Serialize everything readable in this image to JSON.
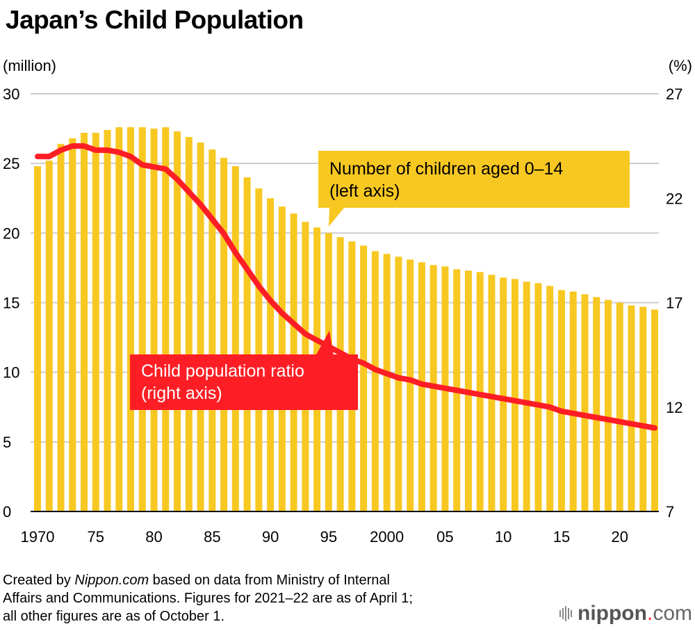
{
  "title": "Japan’s Child Population",
  "left_unit": "(million)",
  "right_unit": "(%)",
  "callouts": {
    "bars": {
      "line1": "Number of children aged 0–14",
      "line2": "(left axis)"
    },
    "line": {
      "line1": "Child population ratio",
      "line2": "(right axis)"
    }
  },
  "footer": {
    "prefix": "Created by ",
    "brand": "Nippon.com",
    "line1_rest": " based on data from Ministry of Internal",
    "line2": "Affairs and Communications. Figures for 2021–22 are as of April 1;",
    "line3": "all other figures are as of October 1."
  },
  "logo": {
    "name": "nippon",
    "dot": ".",
    "tld": "com"
  },
  "colors": {
    "bars": "#f8c822",
    "line": "#fd1e25",
    "grid": "#cccccc",
    "axis": "#000000"
  },
  "chart_data": {
    "type": "bar",
    "title": "Japan’s Child Population",
    "x": [
      1970,
      1971,
      1972,
      1973,
      1974,
      1975,
      1976,
      1977,
      1978,
      1979,
      1980,
      1981,
      1982,
      1983,
      1984,
      1985,
      1986,
      1987,
      1988,
      1989,
      1990,
      1991,
      1992,
      1993,
      1994,
      1995,
      1996,
      1997,
      1998,
      1999,
      2000,
      2001,
      2002,
      2003,
      2004,
      2005,
      2006,
      2007,
      2008,
      2009,
      2010,
      2011,
      2012,
      2013,
      2014,
      2015,
      2016,
      2017,
      2018,
      2019,
      2020,
      2021,
      2022,
      2023
    ],
    "x_tick_labels": [
      {
        "year": 1970,
        "label": "1970"
      },
      {
        "year": 1975,
        "label": "75"
      },
      {
        "year": 1980,
        "label": "80"
      },
      {
        "year": 1985,
        "label": "85"
      },
      {
        "year": 1990,
        "label": "90"
      },
      {
        "year": 1995,
        "label": "95"
      },
      {
        "year": 2000,
        "label": "2000"
      },
      {
        "year": 2005,
        "label": "05"
      },
      {
        "year": 2010,
        "label": "10"
      },
      {
        "year": 2015,
        "label": "15"
      },
      {
        "year": 2020,
        "label": "20"
      }
    ],
    "series": [
      {
        "name": "Number of children aged 0–14 (left axis)",
        "type": "bar",
        "axis": "left",
        "unit": "million",
        "values": [
          24.8,
          25.2,
          26.4,
          26.8,
          27.2,
          27.2,
          27.4,
          27.6,
          27.6,
          27.6,
          27.5,
          27.6,
          27.3,
          26.9,
          26.5,
          26.0,
          25.4,
          24.8,
          24.0,
          23.2,
          22.5,
          21.9,
          21.4,
          20.8,
          20.4,
          20.0,
          19.7,
          19.4,
          19.1,
          18.7,
          18.5,
          18.3,
          18.1,
          17.9,
          17.7,
          17.6,
          17.4,
          17.3,
          17.2,
          17.0,
          16.8,
          16.7,
          16.5,
          16.4,
          16.2,
          15.9,
          15.8,
          15.6,
          15.4,
          15.2,
          15.0,
          14.8,
          14.7,
          14.5
        ]
      },
      {
        "name": "Child population ratio (right axis)",
        "type": "line",
        "axis": "right",
        "unit": "%",
        "values": [
          24.0,
          24.0,
          24.3,
          24.5,
          24.5,
          24.3,
          24.3,
          24.2,
          24.0,
          23.6,
          23.5,
          23.4,
          22.9,
          22.3,
          21.7,
          21.0,
          20.3,
          19.4,
          18.6,
          17.8,
          17.1,
          16.5,
          16.0,
          15.5,
          15.2,
          14.9,
          14.6,
          14.3,
          14.1,
          13.8,
          13.6,
          13.4,
          13.3,
          13.1,
          13.0,
          12.9,
          12.8,
          12.7,
          12.6,
          12.5,
          12.4,
          12.3,
          12.2,
          12.1,
          12.0,
          11.8,
          11.7,
          11.6,
          11.5,
          11.4,
          11.3,
          11.2,
          11.1,
          11.0
        ]
      }
    ],
    "left_axis": {
      "label": "(million)",
      "range": [
        0,
        30
      ],
      "ticks": [
        0,
        5,
        10,
        15,
        20,
        25,
        30
      ]
    },
    "right_axis": {
      "label": "(%)",
      "range": [
        7,
        27
      ],
      "ticks": [
        7,
        12,
        17,
        22,
        27
      ]
    },
    "grid": true,
    "legend": "callouts"
  }
}
